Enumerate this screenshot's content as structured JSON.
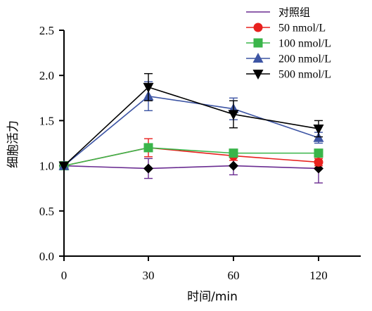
{
  "chart_data": {
    "type": "line",
    "title": "",
    "xlabel": "时间/min",
    "ylabel": "细胞活力",
    "x": [
      0,
      30,
      60,
      120
    ],
    "x_tick_labels": [
      "0",
      "30",
      "60",
      "120"
    ],
    "y_ticks": [
      "0.0",
      "0.5",
      "1.0",
      "1.5",
      "2.0",
      "2.5"
    ],
    "ylim": [
      0,
      2.5
    ],
    "grid": false,
    "legend_position": "top-right",
    "series": [
      {
        "name": "对照组",
        "marker": "diamond",
        "color": "#6a2c91",
        "marker_color": "#000000",
        "values": [
          1.0,
          0.97,
          1.0,
          0.97
        ],
        "errors": [
          0.0,
          0.11,
          0.1,
          0.16
        ]
      },
      {
        "name": "50 nmol/L",
        "marker": "circle",
        "color": "#e8211e",
        "marker_color": "#e8211e",
        "values": [
          1.0,
          1.2,
          1.11,
          1.04
        ],
        "errors": [
          0.0,
          0.1,
          0.05,
          0.04
        ]
      },
      {
        "name": "100 nmol/L",
        "marker": "square",
        "color": "#3ab54a",
        "marker_color": "#3ab54a",
        "values": [
          1.0,
          1.2,
          1.14,
          1.14
        ],
        "errors": [
          0.0,
          0.04,
          0.03,
          0.04
        ]
      },
      {
        "name": "200 nmol/L",
        "marker": "triangle-up",
        "color": "#3d55a4",
        "marker_color": "#3d55a4",
        "values": [
          1.0,
          1.77,
          1.63,
          1.31
        ],
        "errors": [
          0.0,
          0.16,
          0.12,
          0.06
        ]
      },
      {
        "name": "500 nmol/L",
        "marker": "triangle-down",
        "color": "#000000",
        "marker_color": "#000000",
        "values": [
          1.0,
          1.87,
          1.57,
          1.41
        ],
        "errors": [
          0.0,
          0.15,
          0.15,
          0.09
        ]
      }
    ]
  }
}
